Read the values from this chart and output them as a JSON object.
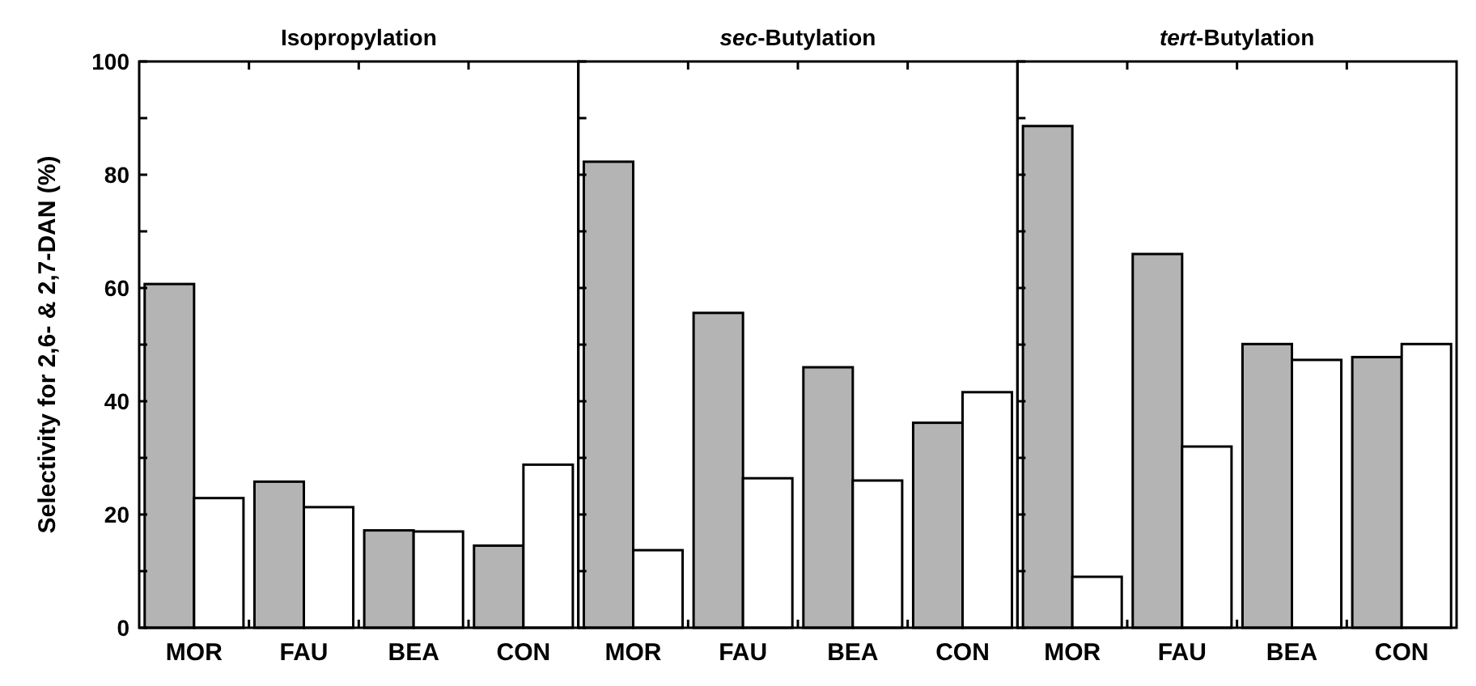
{
  "chart_data": [
    {
      "type": "bar",
      "title": "Isopropylation",
      "ylabel": "Selectivity for 2,6- & 2,7-DAN (%)",
      "categories": [
        "MOR",
        "FAU",
        "BEA",
        "CON"
      ],
      "series": [
        {
          "color": "#b4b4b4",
          "values": [
            60.7,
            25.8,
            17.2,
            14.5
          ]
        },
        {
          "color": "#ffffff",
          "values": [
            22.9,
            21.3,
            17.0,
            28.8
          ]
        }
      ],
      "ylim": [
        0,
        100
      ],
      "yticks": [
        0,
        {
          "value": 10,
          "label": null
        },
        20,
        {
          "value": 30,
          "label": null
        },
        40,
        {
          "value": 50,
          "label": null
        },
        60,
        {
          "value": 70,
          "label": null
        },
        80,
        {
          "value": 90,
          "label": null
        },
        100
      ],
      "grid": false
    },
    {
      "type": "bar",
      "title": "sec-Butylation",
      "categories": [
        "MOR",
        "FAU",
        "BEA",
        "CON"
      ],
      "series": [
        {
          "color": "#b4b4b4",
          "values": [
            82.3,
            55.6,
            46.0,
            36.2
          ]
        },
        {
          "color": "#ffffff",
          "values": [
            13.7,
            26.4,
            26.0,
            41.6
          ]
        }
      ],
      "ylim": [
        0,
        100
      ],
      "yticks": [
        0,
        {
          "value": 10,
          "label": null
        },
        20,
        {
          "value": 30,
          "label": null
        },
        40,
        {
          "value": 50,
          "label": null
        },
        60,
        {
          "value": 70,
          "label": null
        },
        80,
        {
          "value": 90,
          "label": null
        },
        100
      ],
      "tick_labels": "x",
      "grid": false
    },
    {
      "type": "bar",
      "title": "tert-Butylation",
      "categories": [
        "MOR",
        "FAU",
        "BEA",
        "CON"
      ],
      "series": [
        {
          "color": "#b4b4b4",
          "values": [
            88.6,
            66.0,
            50.1,
            47.8
          ]
        },
        {
          "color": "#ffffff",
          "values": [
            9.0,
            32.0,
            47.3,
            50.1
          ]
        }
      ],
      "ylim": [
        0,
        100
      ],
      "yticks": [
        0,
        {
          "value": 10,
          "label": null
        },
        20,
        {
          "value": 30,
          "label": null
        },
        40,
        {
          "value": 50,
          "label": null
        },
        60,
        {
          "value": 70,
          "label": null
        },
        80,
        {
          "value": 90,
          "label": null
        },
        100
      ],
      "tick_labels": "x",
      "grid": false
    }
  ]
}
